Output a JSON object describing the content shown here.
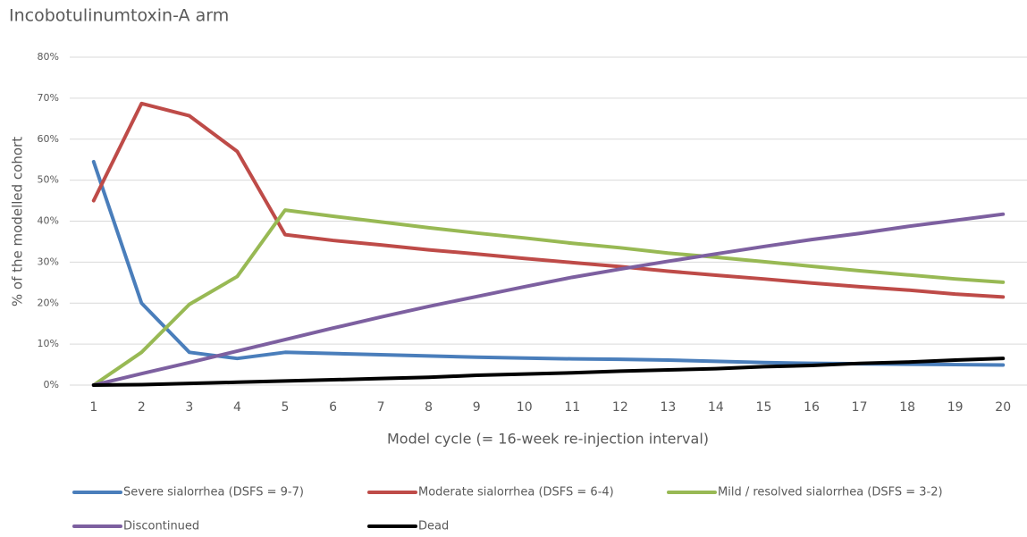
{
  "chart_data": {
    "type": "line",
    "title": "Incobotulinumtoxin-A arm",
    "x_label": "Model cycle (= 16-week re-injection interval)",
    "y_label": "% of the modelled cohort",
    "categories": [
      "1",
      "2",
      "3",
      "4",
      "5",
      "6",
      "7",
      "8",
      "9",
      "10",
      "11",
      "12",
      "13",
      "14",
      "15",
      "16",
      "17",
      "18",
      "19",
      "20"
    ],
    "ylim": [
      0,
      80
    ],
    "yticks": [
      {
        "value": 0,
        "label": "0%"
      },
      {
        "value": 10,
        "label": "10%"
      },
      {
        "value": 20,
        "label": "20%"
      },
      {
        "value": 30,
        "label": "30%"
      },
      {
        "value": 40,
        "label": "40%"
      },
      {
        "value": 50,
        "label": "50%"
      },
      {
        "value": 60,
        "label": "60%"
      },
      {
        "value": 70,
        "label": "70%"
      },
      {
        "value": 80,
        "label": "80%"
      }
    ],
    "grid": true,
    "legend": "bottom",
    "series": [
      {
        "name": "Severe sialorrhea (DSFS = 9-7)",
        "color": "#4a7ebb",
        "values": [
          54.5,
          20,
          8,
          6.5,
          8,
          7.7,
          7.4,
          7.1,
          6.8,
          6.6,
          6.4,
          6.3,
          6.1,
          5.8,
          5.5,
          5.3,
          5.2,
          5.1,
          5.0,
          4.9
        ]
      },
      {
        "name": "Moderate sialorrhea (DSFS = 6-4)",
        "color": "#be4b48",
        "values": [
          45,
          68.7,
          65.7,
          57,
          36.7,
          35.3,
          34.2,
          33,
          32,
          30.9,
          29.9,
          28.9,
          27.8,
          26.8,
          25.9,
          24.9,
          24,
          23.2,
          22.2,
          21.5
        ]
      },
      {
        "name": "Mild / resolved sialorrhea (DSFS = 3-2)",
        "color": "#98b954",
        "values": [
          0,
          8,
          19.7,
          26.5,
          42.7,
          41.2,
          39.8,
          38.4,
          37.1,
          35.9,
          34.6,
          33.5,
          32.2,
          31.2,
          30.1,
          29,
          27.9,
          26.9,
          25.9,
          25.1
        ]
      },
      {
        "name": "Discontinued",
        "color": "#7d60a0",
        "values": [
          0,
          2.8,
          5.5,
          8.3,
          11.1,
          13.9,
          16.6,
          19.2,
          21.6,
          24,
          26.3,
          28.3,
          30.2,
          32,
          33.8,
          35.5,
          37,
          38.7,
          40.2,
          41.7
        ]
      },
      {
        "name": "Dead",
        "color": "#000000",
        "values": [
          0,
          0.1,
          0.4,
          0.7,
          1,
          1.3,
          1.6,
          1.9,
          2.4,
          2.7,
          3,
          3.4,
          3.7,
          4,
          4.5,
          4.8,
          5.3,
          5.6,
          6.1,
          6.5
        ]
      }
    ]
  }
}
